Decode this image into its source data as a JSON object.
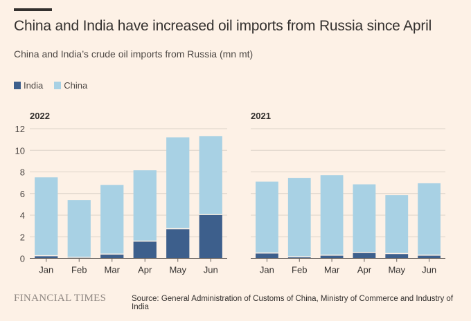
{
  "header": {
    "title": "China and India have increased oil imports from Russia since April",
    "subtitle": "China and India’s crude oil imports from Russia (mn mt)"
  },
  "legend": [
    {
      "label": "India",
      "color": "#3d5f8c"
    },
    {
      "label": "China",
      "color": "#a8d1e4"
    }
  ],
  "footer": {
    "logo": "FINANCIAL TIMES",
    "source": "Source: General Administration of Customs of China, Ministry of Commerce and Industry of India"
  },
  "chart_data": [
    {
      "type": "bar",
      "stacked": true,
      "title": "2022",
      "categories": [
        "Jan",
        "Feb",
        "Mar",
        "Apr",
        "May",
        "Jun"
      ],
      "series": [
        {
          "name": "India",
          "values": [
            0.2,
            0.05,
            0.35,
            1.55,
            2.7,
            4.0
          ]
        },
        {
          "name": "China",
          "values": [
            7.3,
            5.35,
            6.45,
            6.6,
            8.5,
            7.3
          ]
        }
      ],
      "totals": [
        7.5,
        5.4,
        6.8,
        8.15,
        11.2,
        11.3
      ],
      "ylim": [
        0,
        12
      ],
      "yticks": [
        0,
        2,
        4,
        6,
        8,
        10,
        12
      ],
      "grid": true,
      "legend": "top-left"
    },
    {
      "type": "bar",
      "stacked": true,
      "title": "2021",
      "categories": [
        "Jan",
        "Feb",
        "Mar",
        "Apr",
        "May",
        "Jun"
      ],
      "series": [
        {
          "name": "India",
          "values": [
            0.45,
            0.1,
            0.25,
            0.5,
            0.4,
            0.25
          ]
        },
        {
          "name": "China",
          "values": [
            6.65,
            7.35,
            7.45,
            6.35,
            5.45,
            6.7
          ]
        }
      ],
      "totals": [
        7.1,
        7.45,
        7.7,
        6.85,
        5.85,
        6.95
      ],
      "ylim": [
        0,
        12
      ],
      "yticks": [
        0,
        2,
        4,
        6,
        8,
        10,
        12
      ],
      "grid": true
    }
  ]
}
